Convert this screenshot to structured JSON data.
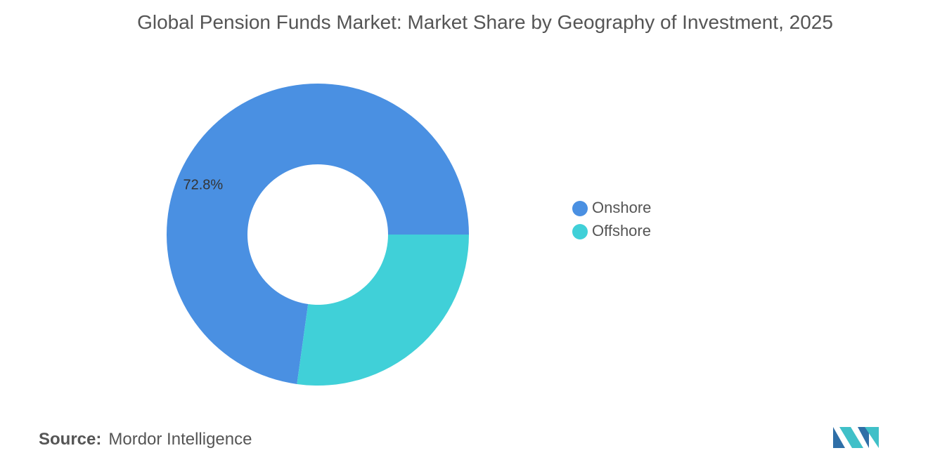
{
  "chart_data": {
    "type": "donut",
    "title": "Global Pension Funds Market: Market Share by Geography of Investment, 2025",
    "categories": [
      "Onshore",
      "Offshore"
    ],
    "series": [
      {
        "name": "Share",
        "values": [
          72.8,
          27.2
        ],
        "value_labels": [
          "72.8%",
          null
        ]
      }
    ],
    "colors": [
      "#4a90e2",
      "#40d0d8"
    ],
    "legend": "right"
  },
  "footer": {
    "source_label": "Source:",
    "source": "Mordor Intelligence"
  }
}
